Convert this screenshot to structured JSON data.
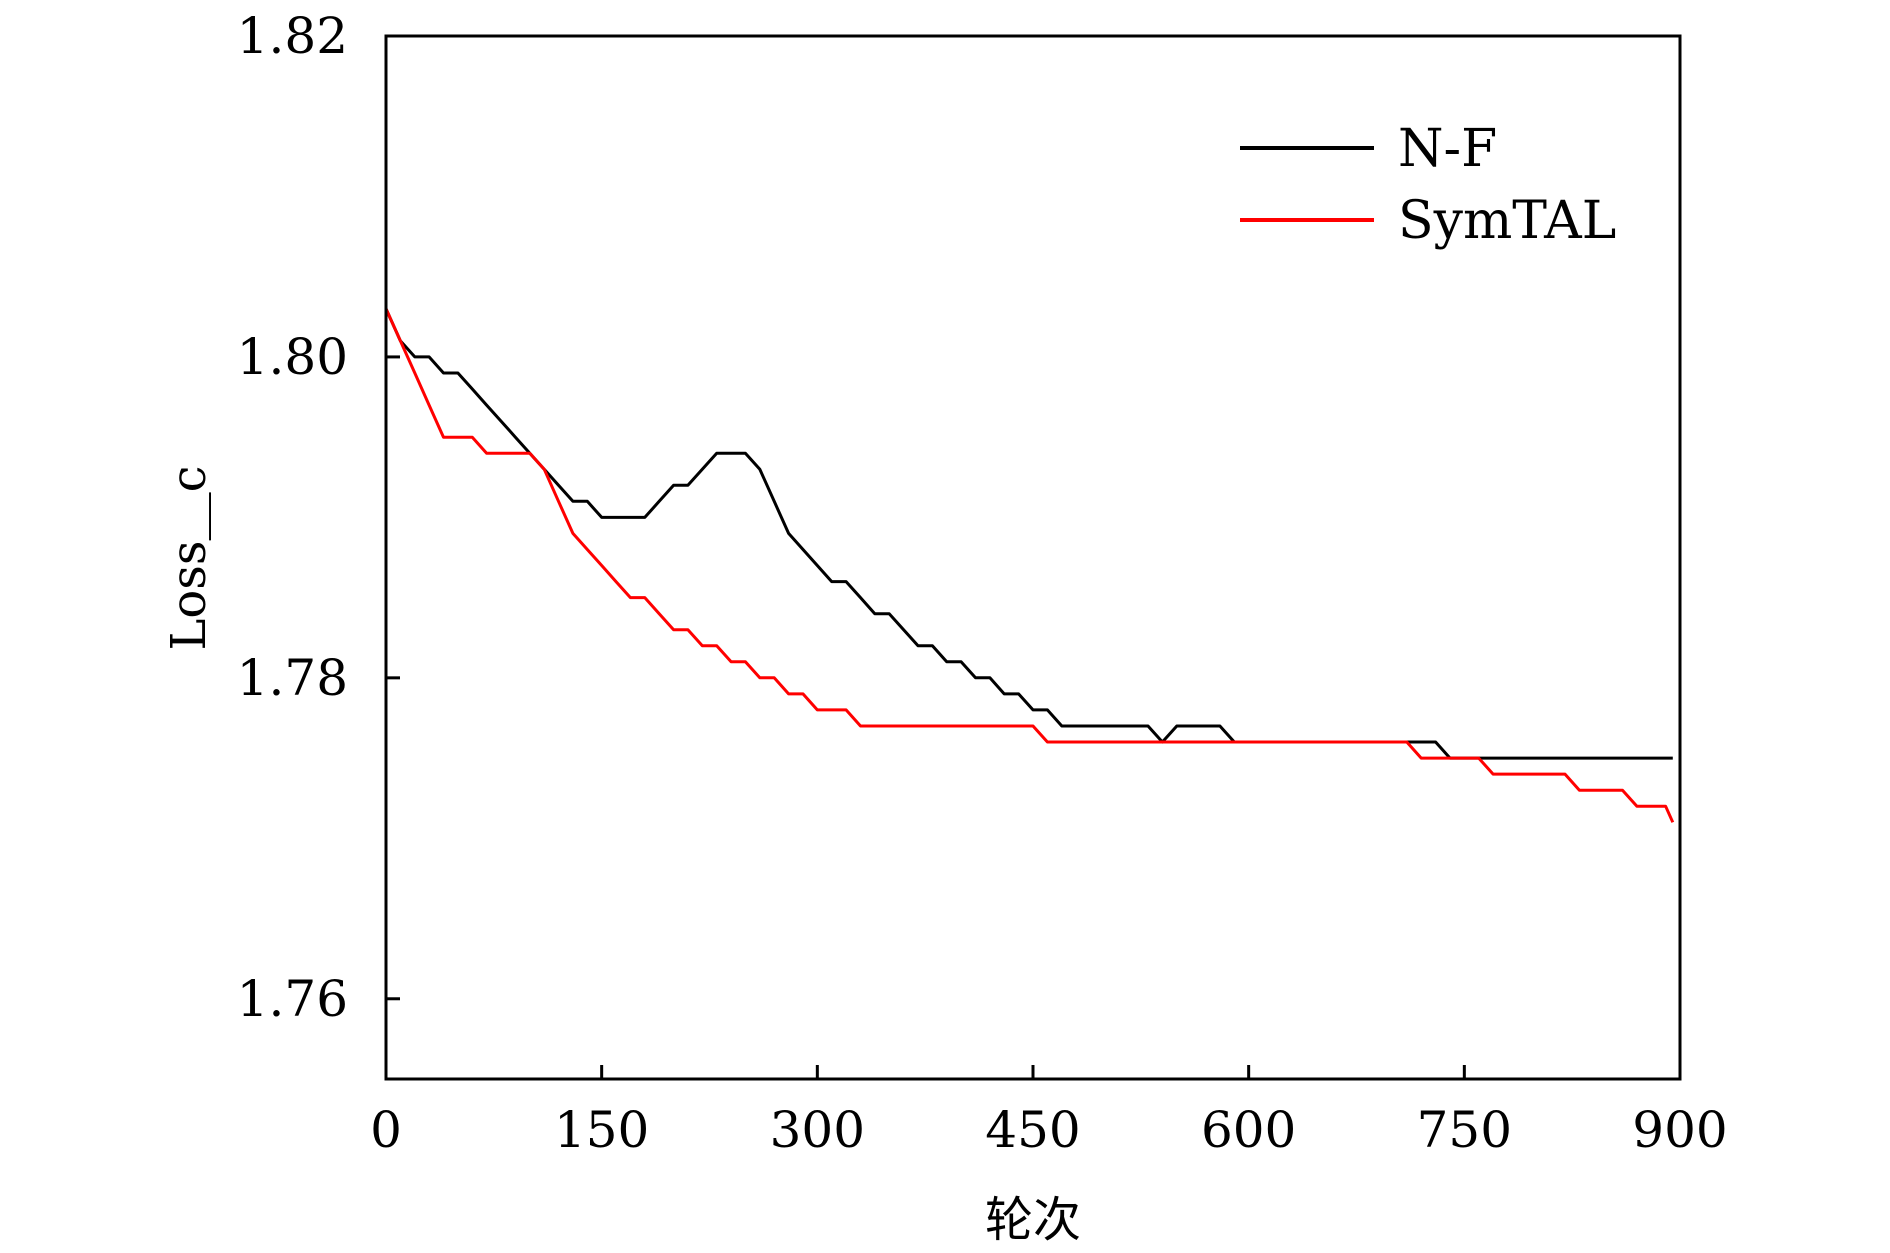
{
  "chart_data": {
    "type": "line",
    "xlabel": "轮次",
    "ylabel": "Loss＿c",
    "xlim": [
      0,
      900
    ],
    "ylim": [
      1.755,
      1.82
    ],
    "xticks": [
      0,
      150,
      300,
      450,
      600,
      750,
      900
    ],
    "xtick_labels": [
      "0",
      "150",
      "300",
      "450",
      "600",
      "750",
      "900"
    ],
    "yticks": [
      1.76,
      1.78,
      1.8,
      1.82
    ],
    "ytick_labels": [
      "1.76",
      "1.78",
      "1.80",
      "1.82"
    ],
    "grid": false,
    "legend_position": "top-right",
    "series": [
      {
        "name": "N-F",
        "color": "#000000",
        "x": [
          0,
          10,
          20,
          30,
          40,
          50,
          60,
          70,
          80,
          90,
          100,
          110,
          120,
          130,
          140,
          150,
          160,
          170,
          180,
          190,
          200,
          210,
          220,
          230,
          240,
          250,
          260,
          270,
          280,
          290,
          300,
          310,
          320,
          330,
          340,
          350,
          360,
          370,
          380,
          390,
          400,
          410,
          420,
          430,
          440,
          450,
          460,
          470,
          480,
          490,
          500,
          510,
          520,
          530,
          540,
          550,
          560,
          570,
          580,
          590,
          600,
          610,
          620,
          630,
          640,
          650,
          660,
          670,
          680,
          690,
          700,
          710,
          720,
          730,
          740,
          750,
          760,
          770,
          780,
          790,
          800,
          810,
          820,
          826,
          830,
          840,
          850,
          860,
          870,
          880,
          890,
          895
        ],
        "y": [
          1.803,
          1.801,
          1.8,
          1.8,
          1.799,
          1.799,
          1.798,
          1.797,
          1.796,
          1.795,
          1.794,
          1.793,
          1.792,
          1.791,
          1.791,
          1.79,
          1.79,
          1.79,
          1.79,
          1.791,
          1.792,
          1.792,
          1.793,
          1.794,
          1.794,
          1.794,
          1.793,
          1.791,
          1.789,
          1.788,
          1.787,
          1.786,
          1.786,
          1.785,
          1.784,
          1.784,
          1.783,
          1.782,
          1.782,
          1.781,
          1.781,
          1.78,
          1.78,
          1.779,
          1.779,
          1.778,
          1.778,
          1.777,
          1.777,
          1.777,
          1.777,
          1.777,
          1.777,
          1.777,
          1.776,
          1.777,
          1.777,
          1.777,
          1.777,
          1.776,
          1.776,
          1.776,
          1.776,
          1.776,
          1.776,
          1.776,
          1.776,
          1.776,
          1.776,
          1.776,
          1.776,
          1.776,
          1.776,
          1.776,
          1.775,
          1.775,
          1.775,
          1.775,
          1.775,
          1.775,
          1.775,
          1.775,
          1.775,
          1.775,
          1.775,
          1.775,
          1.775,
          1.775,
          1.775,
          1.775,
          1.775,
          1.775
        ]
      },
      {
        "name": "SymTAL",
        "color": "#ff0000",
        "x": [
          0,
          10,
          20,
          30,
          40,
          50,
          60,
          70,
          80,
          90,
          100,
          110,
          120,
          130,
          140,
          150,
          160,
          170,
          180,
          190,
          200,
          210,
          220,
          230,
          240,
          250,
          260,
          270,
          280,
          290,
          300,
          310,
          320,
          330,
          340,
          350,
          360,
          370,
          380,
          390,
          400,
          410,
          420,
          430,
          440,
          450,
          460,
          470,
          480,
          490,
          500,
          510,
          520,
          530,
          540,
          550,
          560,
          570,
          580,
          590,
          600,
          610,
          620,
          630,
          640,
          650,
          660,
          670,
          680,
          690,
          700,
          710,
          720,
          730,
          740,
          750,
          760,
          770,
          780,
          790,
          800,
          810,
          820,
          830,
          840,
          850,
          860,
          870,
          880,
          890,
          895
        ],
        "y": [
          1.803,
          1.801,
          1.799,
          1.797,
          1.795,
          1.795,
          1.795,
          1.794,
          1.794,
          1.794,
          1.794,
          1.793,
          1.791,
          1.789,
          1.788,
          1.787,
          1.786,
          1.785,
          1.785,
          1.784,
          1.783,
          1.783,
          1.782,
          1.782,
          1.781,
          1.781,
          1.78,
          1.78,
          1.779,
          1.779,
          1.778,
          1.778,
          1.778,
          1.777,
          1.777,
          1.777,
          1.777,
          1.777,
          1.777,
          1.777,
          1.777,
          1.777,
          1.777,
          1.777,
          1.777,
          1.777,
          1.776,
          1.776,
          1.776,
          1.776,
          1.776,
          1.776,
          1.776,
          1.776,
          1.776,
          1.776,
          1.776,
          1.776,
          1.776,
          1.776,
          1.776,
          1.776,
          1.776,
          1.776,
          1.776,
          1.776,
          1.776,
          1.776,
          1.776,
          1.776,
          1.776,
          1.776,
          1.775,
          1.775,
          1.775,
          1.775,
          1.775,
          1.774,
          1.774,
          1.774,
          1.774,
          1.774,
          1.774,
          1.773,
          1.773,
          1.773,
          1.773,
          1.772,
          1.772,
          1.772,
          1.771
        ]
      }
    ]
  }
}
